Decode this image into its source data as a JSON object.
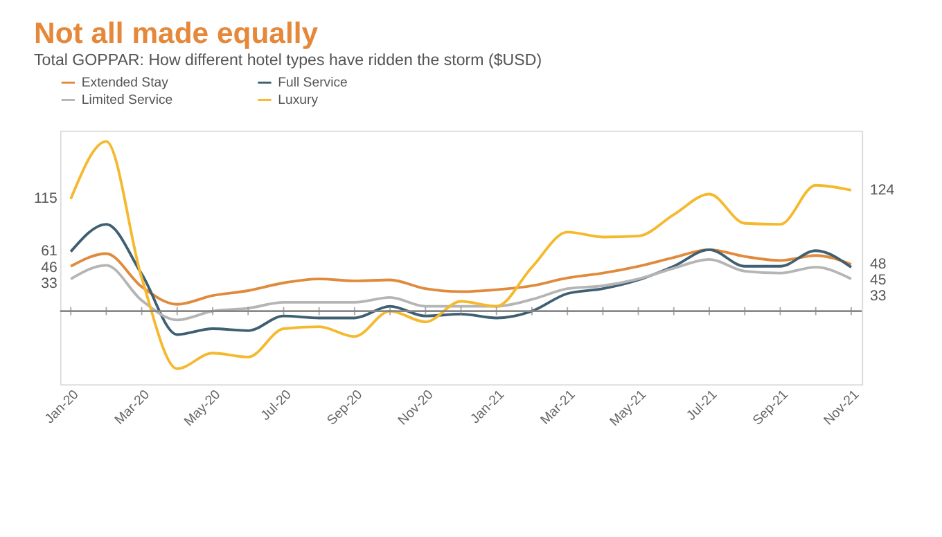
{
  "chart_data": {
    "type": "line",
    "title": "Not all made equally",
    "subtitle": "Total GOPPAR: How different hotel types have ridden the storm ($USD)",
    "categories": [
      "Jan-20",
      null,
      "Mar-20",
      null,
      "May-20",
      null,
      "Jul-20",
      null,
      "Sep-20",
      null,
      "Nov-20",
      null,
      "Jan-21",
      null,
      "Mar-21",
      null,
      "May-21",
      null,
      "Jul-21",
      null,
      "Sep-21",
      null,
      "Nov-21"
    ],
    "series": [
      {
        "name": "Extended Stay",
        "color": "#e08a3c",
        "values": [
          46,
          59,
          25,
          7,
          16,
          21,
          29,
          33,
          31,
          32,
          23,
          20,
          22,
          26,
          34,
          39,
          46,
          55,
          63,
          56,
          52,
          57,
          48
        ],
        "value_labels": [
          "46",
          null,
          null,
          null,
          null,
          null,
          null,
          null,
          null,
          null,
          null,
          null,
          null,
          null,
          null,
          null,
          null,
          null,
          null,
          null,
          null,
          null,
          "48"
        ]
      },
      {
        "name": "Full Service",
        "color": "#3f5f73",
        "values": [
          61,
          89,
          38,
          -24,
          -18,
          -20,
          -5,
          -7,
          -7,
          5,
          -5,
          -3,
          -7,
          0,
          18,
          23,
          32,
          46,
          63,
          46,
          46,
          62,
          45
        ],
        "value_labels": [
          "61",
          null,
          null,
          null,
          null,
          null,
          null,
          null,
          null,
          null,
          null,
          null,
          null,
          null,
          null,
          null,
          null,
          null,
          null,
          null,
          null,
          null,
          "45"
        ]
      },
      {
        "name": "Limited Service",
        "color": "#b5b5b5",
        "values": [
          33,
          47,
          11,
          -9,
          0,
          3,
          9,
          9,
          9,
          14,
          5,
          5,
          5,
          12,
          23,
          26,
          33,
          44,
          53,
          41,
          39,
          45,
          33
        ],
        "value_labels": [
          "33",
          null,
          null,
          null,
          null,
          null,
          null,
          null,
          null,
          null,
          null,
          null,
          null,
          null,
          null,
          null,
          null,
          null,
          null,
          null,
          null,
          null,
          "33"
        ]
      },
      {
        "name": "Luxury",
        "color": "#f5b92e",
        "values": [
          115,
          174,
          34,
          -59,
          -43,
          -47,
          -18,
          -16,
          -26,
          0,
          -11,
          10,
          5,
          45,
          81,
          76,
          77,
          99,
          120,
          90,
          89,
          129,
          124
        ],
        "value_labels": [
          "115",
          null,
          null,
          null,
          null,
          null,
          null,
          null,
          null,
          null,
          null,
          null,
          null,
          null,
          null,
          null,
          null,
          null,
          null,
          null,
          null,
          null,
          "124"
        ]
      }
    ],
    "ylim": [
      -75,
      185
    ],
    "tick_labels": "x",
    "ref_lines": [
      {
        "axis": "y",
        "value": 0,
        "color": "#888888"
      }
    ],
    "legend": "top",
    "grid": false,
    "line_style": "solid",
    "marker": "none"
  }
}
